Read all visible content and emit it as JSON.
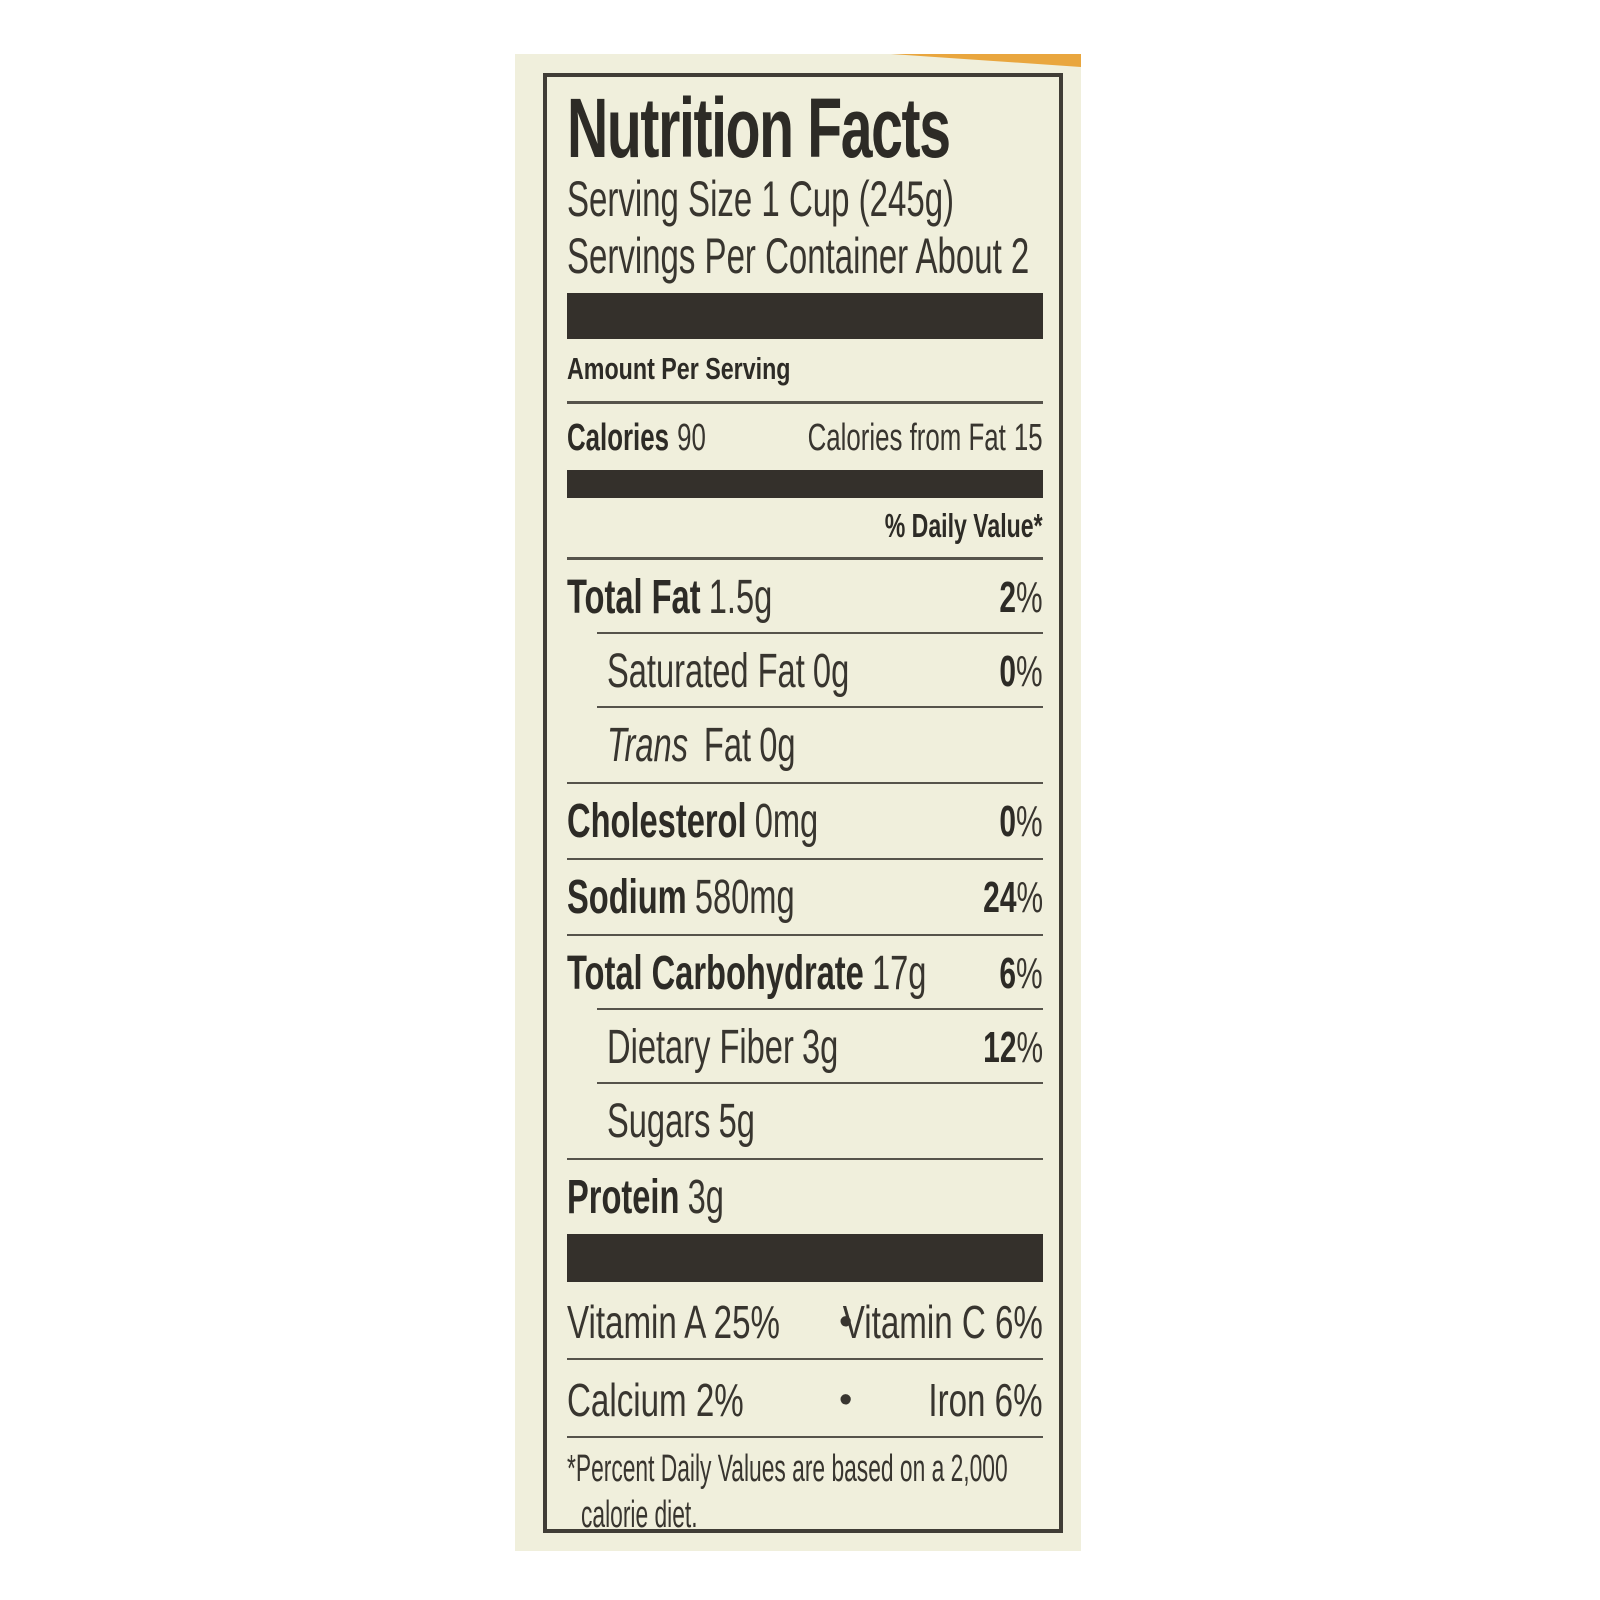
{
  "label": {
    "title": "Nutrition Facts",
    "serving_size": "Serving Size 1 Cup (245g)",
    "servings_per_container": "Servings Per Container About 2",
    "amount_per_serving": "Amount Per Serving",
    "calories": {
      "label": "Calories",
      "value": "90",
      "from_fat_label": "Calories from Fat",
      "from_fat_value": "15"
    },
    "daily_value_header": "% Daily Value*",
    "nutrients": [
      {
        "name": "Total Fat",
        "amount": "1.5g",
        "dv": "2",
        "pct": "%"
      },
      {
        "name": "Saturated Fat",
        "amount": "0g",
        "dv": "0",
        "pct": "%"
      },
      {
        "name_italic": "Trans",
        "name": " Fat",
        "amount": "0g"
      },
      {
        "name": "Cholesterol",
        "amount": "0mg",
        "dv": "0",
        "pct": "%"
      },
      {
        "name": "Sodium",
        "amount": "580mg",
        "dv": "24",
        "pct": "%"
      },
      {
        "name": "Total Carbohydrate",
        "amount": "17g",
        "dv": "6",
        "pct": "%"
      },
      {
        "name": "Dietary Fiber",
        "amount": "3g",
        "dv": "12",
        "pct": "%"
      },
      {
        "name": "Sugars",
        "amount": "5g"
      },
      {
        "name": "Protein",
        "amount": "3g"
      }
    ],
    "micronutrients": [
      {
        "left": "Vitamin A 25%",
        "bullet": "•",
        "right": "Vitamin C 6%"
      },
      {
        "left": "Calcium 2%",
        "bullet": "•",
        "right": "Iron 6%"
      }
    ],
    "footnote_line1": "*Percent Daily Values are based on a 2,000",
    "footnote_line2": "calorie diet.",
    "colors": {
      "label_background": "#f0efdc",
      "bar": "#34302b",
      "text": "#38352f",
      "rule": "#56534b",
      "accent_top_strip": "#e9a63e",
      "page_background": "#ffffff"
    }
  }
}
